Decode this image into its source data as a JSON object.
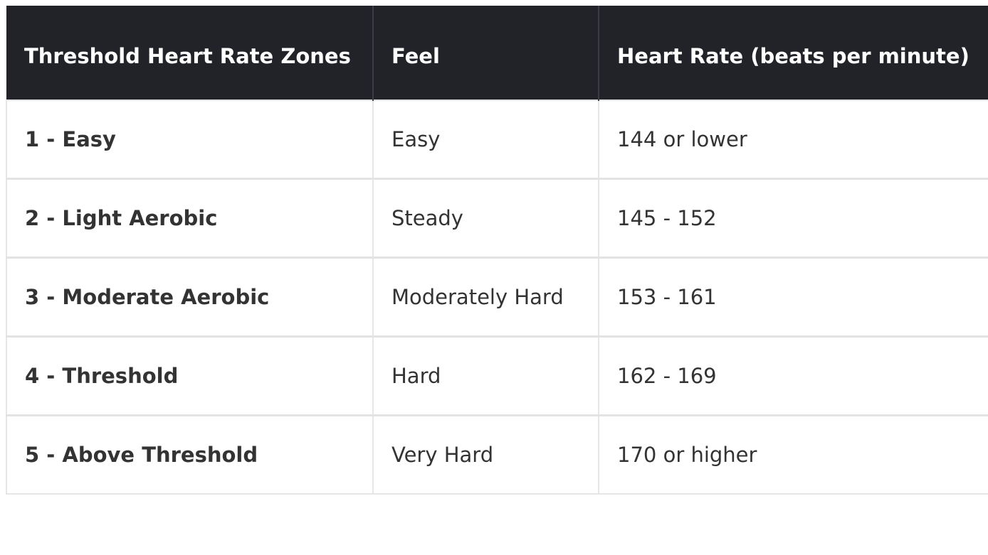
{
  "table": {
    "headers": [
      "Threshold Heart Rate Zones",
      "Feel",
      "Heart Rate (beats per minute)"
    ],
    "rows": [
      {
        "zone": "1 - Easy",
        "feel": "Easy",
        "heart_rate": "144 or lower"
      },
      {
        "zone": "2 - Light Aerobic",
        "feel": "Steady",
        "heart_rate": "145 - 152"
      },
      {
        "zone": "3 - Moderate Aerobic",
        "feel": "Moderately Hard",
        "heart_rate": "153 - 161"
      },
      {
        "zone": "4 - Threshold",
        "feel": "Hard",
        "heart_rate": "162 - 169"
      },
      {
        "zone": "5 - Above Threshold",
        "feel": "Very Hard",
        "heart_rate": "170 or higher"
      }
    ],
    "colors": {
      "header_background": "#212328",
      "header_text": "#ffffff",
      "body_text": "#333333",
      "grid_line": "#e6e6e6"
    }
  }
}
